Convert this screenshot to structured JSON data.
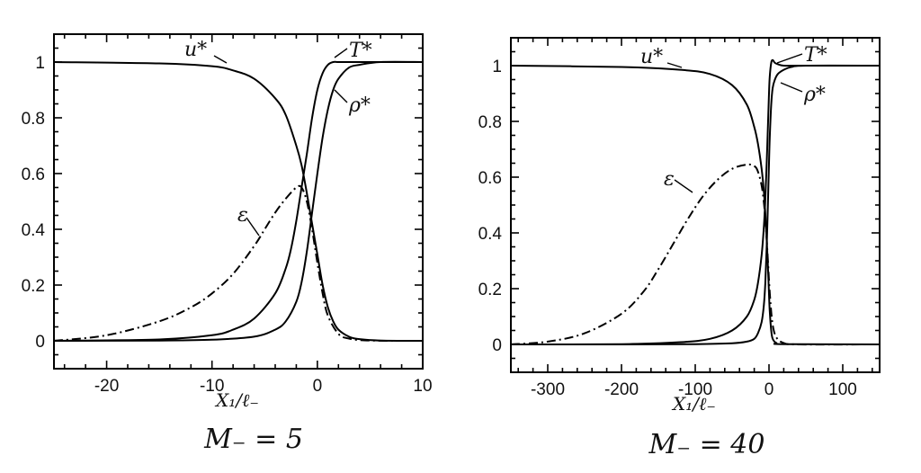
{
  "chart_data": [
    {
      "type": "line",
      "caption": "M₋ = 5",
      "xlabel": "X₁/ℓ₋",
      "ylabel": "",
      "xlim": [
        -25,
        10
      ],
      "ylim": [
        -0.1,
        1.1
      ],
      "xticks": [
        "-20",
        "-10",
        "0",
        "10"
      ],
      "xtick_values": [
        -20,
        -10,
        0,
        10
      ],
      "yticks": [
        "0",
        "0.2",
        "0.4",
        "0.6",
        "0.8",
        "1"
      ],
      "ytick_values": [
        0,
        0.2,
        0.4,
        0.6,
        0.8,
        1
      ],
      "grid": false,
      "series": [
        {
          "name": "u*",
          "style": "solid",
          "x": [
            -25,
            -15,
            -10,
            -8,
            -6,
            -4,
            -3,
            -2,
            -1.5,
            -1,
            -0.5,
            0,
            0.5,
            1,
            1.5,
            2,
            3,
            4,
            6,
            10
          ],
          "y": [
            1.0,
            0.995,
            0.985,
            0.97,
            0.94,
            0.87,
            0.81,
            0.7,
            0.63,
            0.53,
            0.42,
            0.31,
            0.2,
            0.12,
            0.07,
            0.04,
            0.015,
            0.006,
            0.001,
            0.0
          ]
        },
        {
          "name": "T*",
          "style": "solid",
          "x": [
            -25,
            -15,
            -10,
            -8,
            -6,
            -4,
            -3,
            -2.5,
            -2,
            -1.5,
            -1,
            -0.5,
            0,
            0.5,
            1,
            1.5,
            2,
            3,
            5,
            10
          ],
          "y": [
            0.0,
            0.005,
            0.02,
            0.04,
            0.08,
            0.17,
            0.26,
            0.33,
            0.43,
            0.55,
            0.67,
            0.8,
            0.9,
            0.96,
            0.99,
            1.0,
            1.0,
            1.0,
            1.0,
            1.0
          ]
        },
        {
          "name": "ρ*",
          "style": "solid",
          "x": [
            -25,
            -15,
            -10,
            -6,
            -4,
            -3,
            -2,
            -1.5,
            -1,
            -0.5,
            0,
            0.5,
            1,
            1.5,
            2,
            3,
            4,
            6,
            10
          ],
          "y": [
            0.0,
            0.001,
            0.004,
            0.015,
            0.04,
            0.07,
            0.14,
            0.21,
            0.32,
            0.46,
            0.6,
            0.73,
            0.83,
            0.9,
            0.94,
            0.98,
            0.99,
            1.0,
            1.0
          ]
        },
        {
          "name": "ε",
          "style": "dashdot",
          "x": [
            -25,
            -20,
            -15,
            -12,
            -10,
            -8,
            -6,
            -5,
            -4,
            -3,
            -2,
            -1.5,
            -1,
            -0.5,
            0,
            0.5,
            1,
            2,
            3,
            5,
            10
          ],
          "y": [
            0.0,
            0.02,
            0.07,
            0.12,
            0.17,
            0.24,
            0.34,
            0.4,
            0.46,
            0.51,
            0.55,
            0.55,
            0.5,
            0.4,
            0.28,
            0.17,
            0.09,
            0.025,
            0.008,
            0.001,
            0.0
          ]
        }
      ],
      "annotations": [
        "u*",
        "T*",
        "ρ*",
        "ε"
      ]
    },
    {
      "type": "line",
      "caption": "M₋ = 40",
      "xlabel": "X₁/ℓ₋",
      "ylabel": "",
      "xlim": [
        -350,
        150
      ],
      "ylim": [
        -0.1,
        1.1
      ],
      "xticks": [
        "-300",
        "-200",
        "-100",
        "0",
        "100"
      ],
      "xtick_values": [
        -300,
        -200,
        -100,
        0,
        100
      ],
      "yticks": [
        "0",
        "0.2",
        "0.4",
        "0.6",
        "0.8",
        "1"
      ],
      "ytick_values": [
        0,
        0.2,
        0.4,
        0.6,
        0.8,
        1
      ],
      "grid": false,
      "series": [
        {
          "name": "u*",
          "style": "solid",
          "x": [
            -350,
            -200,
            -120,
            -80,
            -50,
            -30,
            -20,
            -15,
            -10,
            -7,
            -5,
            -3,
            -1,
            0,
            1,
            3,
            5,
            10,
            20,
            150
          ],
          "y": [
            1.0,
            0.995,
            0.985,
            0.97,
            0.93,
            0.86,
            0.78,
            0.72,
            0.63,
            0.55,
            0.47,
            0.37,
            0.25,
            0.18,
            0.12,
            0.05,
            0.02,
            0.005,
            0.001,
            0.0
          ]
        },
        {
          "name": "T*",
          "style": "solid",
          "x": [
            -350,
            -200,
            -120,
            -80,
            -50,
            -30,
            -20,
            -15,
            -10,
            -7,
            -5,
            -3,
            -1,
            0,
            1,
            3,
            5,
            8,
            12,
            20,
            40,
            150
          ],
          "y": [
            0.0,
            0.001,
            0.008,
            0.02,
            0.05,
            0.1,
            0.16,
            0.22,
            0.32,
            0.42,
            0.52,
            0.66,
            0.82,
            0.9,
            0.96,
            1.01,
            1.02,
            1.01,
            1.005,
            1.0,
            1.0,
            1.0
          ]
        },
        {
          "name": "ρ*",
          "style": "solid",
          "x": [
            -350,
            -200,
            -100,
            -50,
            -30,
            -20,
            -15,
            -10,
            -7,
            -5,
            -3,
            -1,
            0,
            1,
            3,
            5,
            8,
            12,
            20,
            30,
            50,
            150
          ],
          "y": [
            0.0,
            0.0,
            0.001,
            0.004,
            0.01,
            0.02,
            0.04,
            0.08,
            0.14,
            0.22,
            0.36,
            0.55,
            0.65,
            0.74,
            0.86,
            0.92,
            0.95,
            0.97,
            0.985,
            0.995,
            1.0,
            1.0
          ]
        },
        {
          "name": "ε",
          "style": "dashdot",
          "x": [
            -350,
            -300,
            -250,
            -200,
            -170,
            -150,
            -130,
            -110,
            -90,
            -70,
            -50,
            -30,
            -20,
            -15,
            -10,
            -7,
            -5,
            -3,
            -1,
            0,
            2,
            5,
            10,
            20,
            40,
            150
          ],
          "y": [
            0.0,
            0.01,
            0.04,
            0.11,
            0.19,
            0.27,
            0.36,
            0.45,
            0.53,
            0.59,
            0.63,
            0.645,
            0.64,
            0.62,
            0.57,
            0.51,
            0.45,
            0.37,
            0.28,
            0.23,
            0.15,
            0.07,
            0.025,
            0.005,
            0.0,
            0.0
          ]
        }
      ],
      "annotations": [
        "u*",
        "T*",
        "ρ*",
        "ε"
      ]
    }
  ]
}
